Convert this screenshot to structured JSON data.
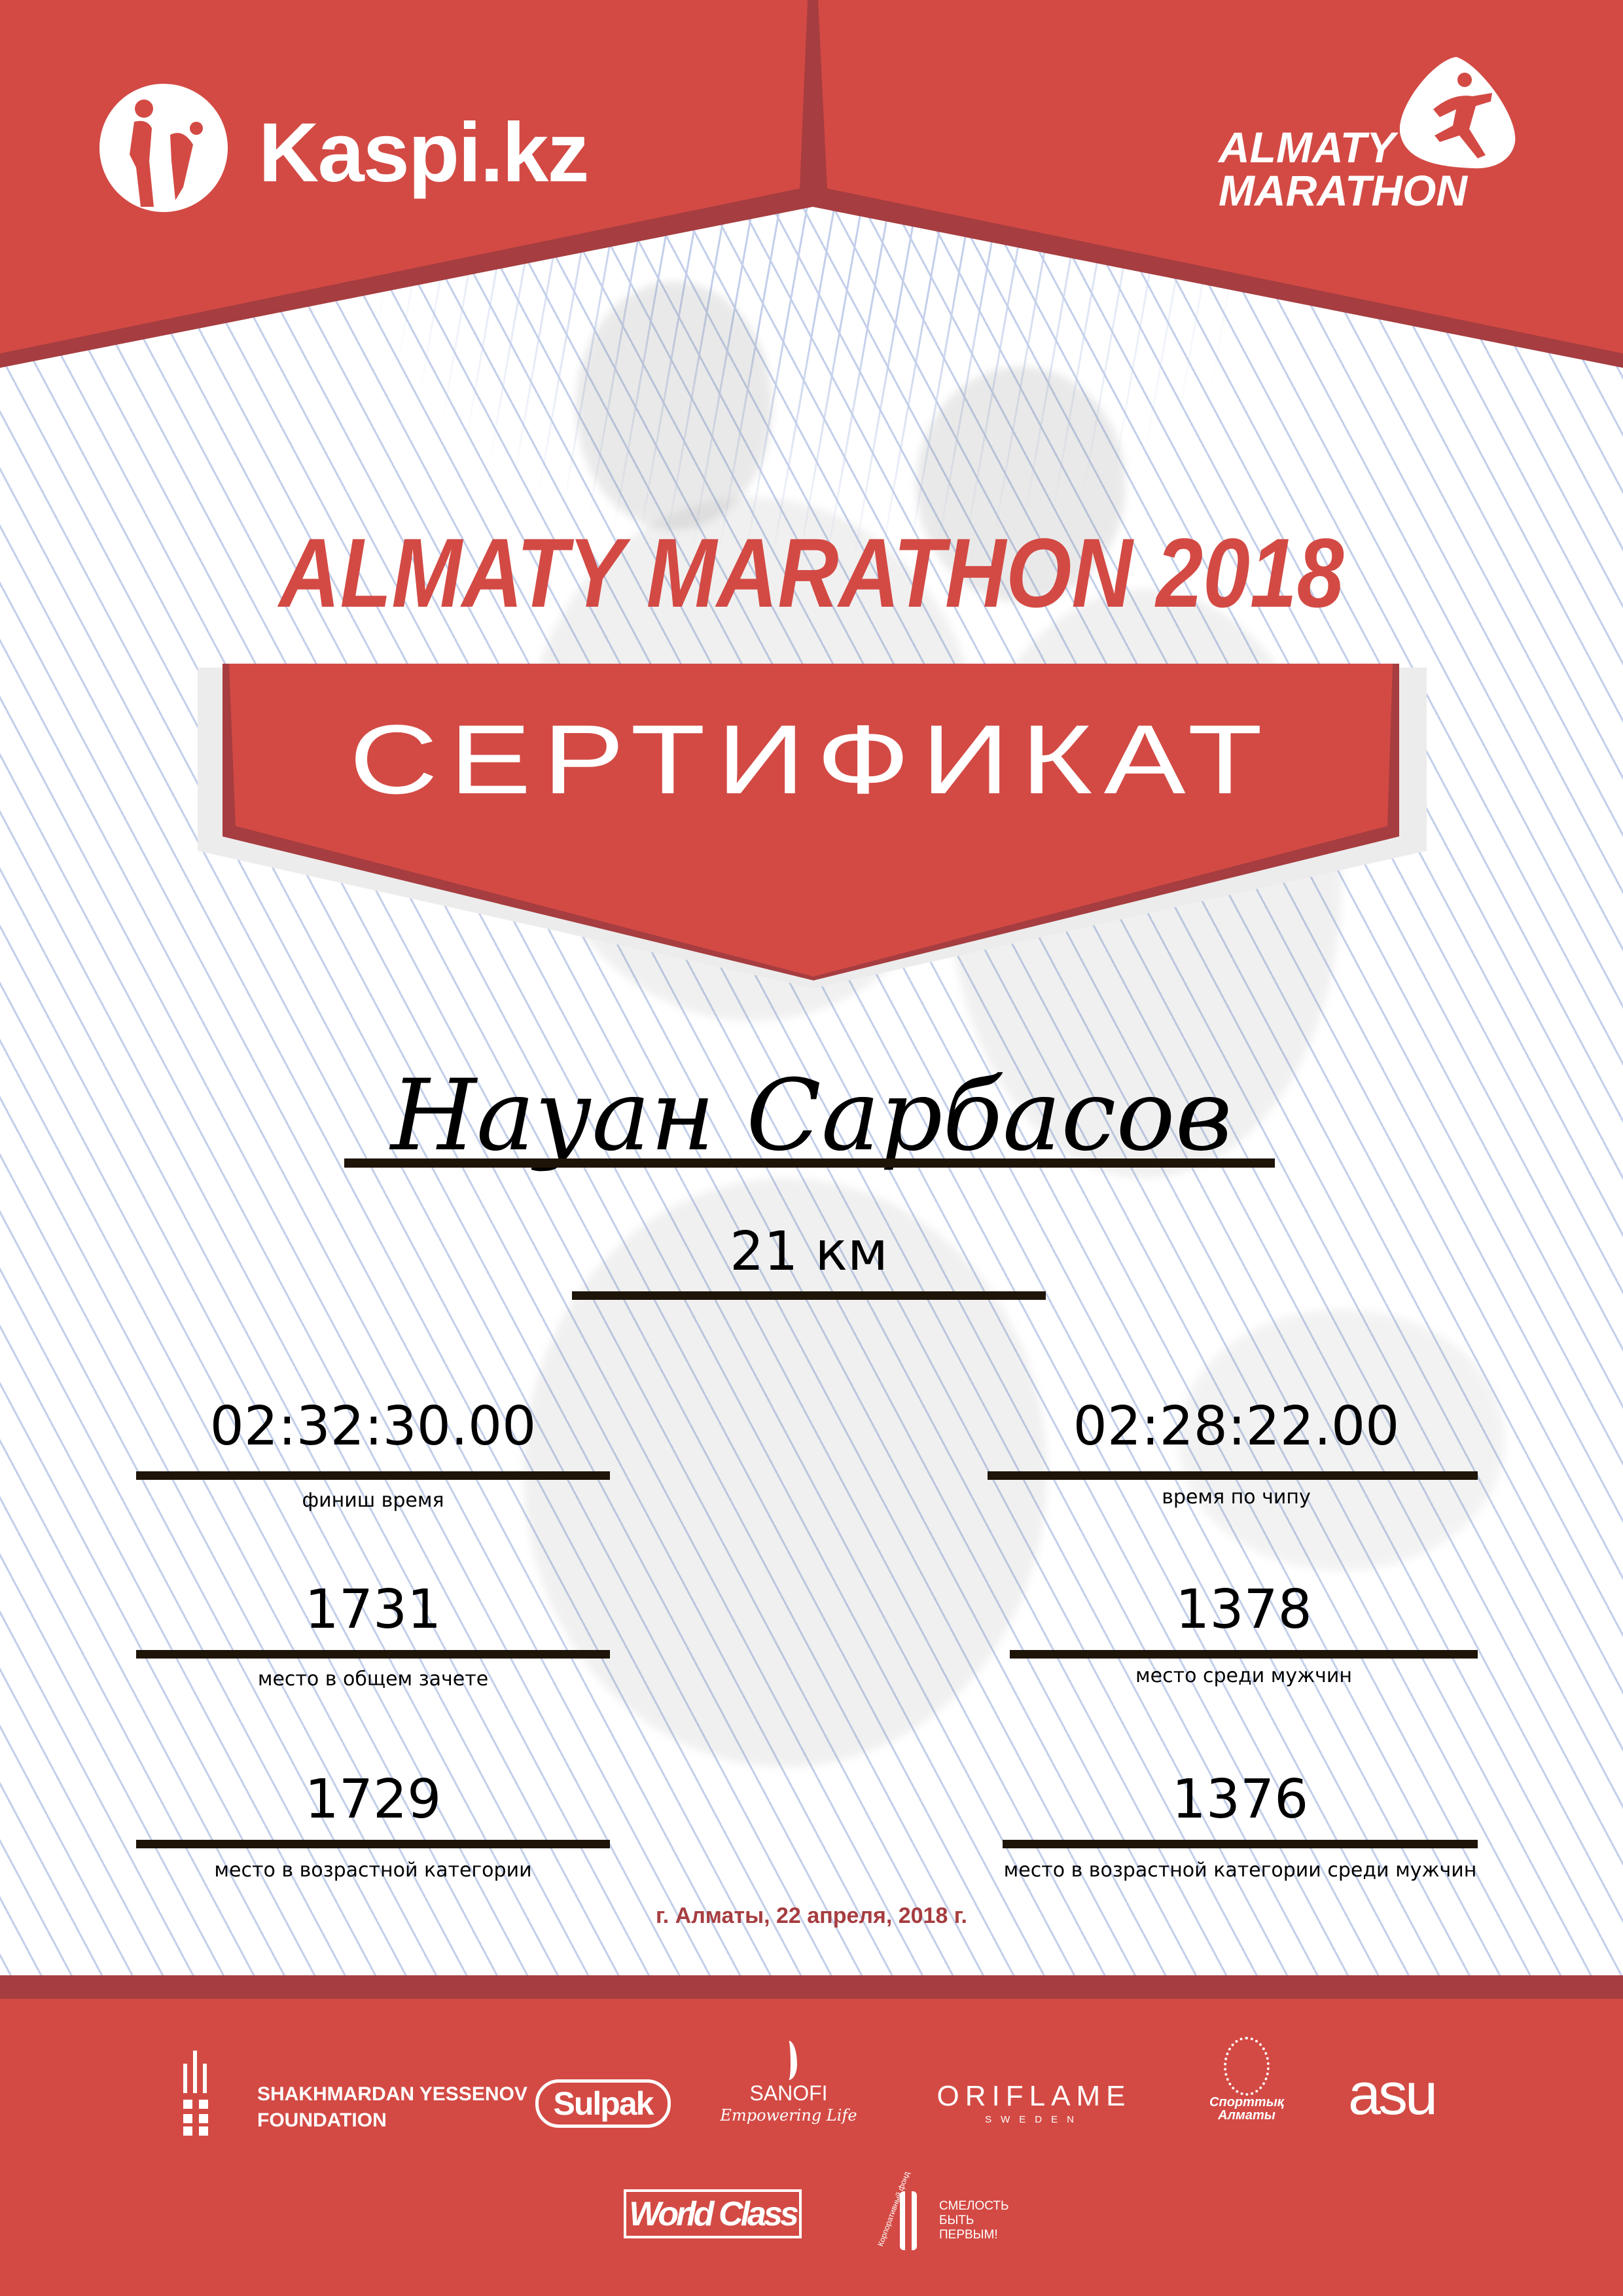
{
  "header": {
    "left_logo": {
      "text": "Kaspi.kz",
      "icon": "kaspi-figures-icon"
    },
    "right_logo": {
      "line1": "ALMATY",
      "line2": "MARATHON",
      "icon": "runner-icon"
    }
  },
  "title": "ALMATY MARATHON 2018",
  "banner": "СЕРТИФИКАТ",
  "participant": {
    "name": "Науан Сарбасов",
    "distance": "21 км"
  },
  "results": [
    {
      "value": "02:32:30.00",
      "label": "финиш время"
    },
    {
      "value": "02:28:22.00",
      "label": "время по чипу"
    },
    {
      "value": "1731",
      "label": "место в общем зачете"
    },
    {
      "value": "1378",
      "label": "место среди мужчин"
    },
    {
      "value": "1729",
      "label": "место в возрастной категории"
    },
    {
      "value": "1376",
      "label": "место в возрастной категории среди мужчин"
    }
  ],
  "date": "г. Алматы, 22 апреля, 2018 г.",
  "sponsors": {
    "yessenov": {
      "line1": "SHAKHMARDAN YESSENOV",
      "line2": "FOUNDATION"
    },
    "sulpak": "Sulpak",
    "sanofi": {
      "name": "SANOFI",
      "tagline": "Empowering Life"
    },
    "oriflame": {
      "name": "ORIFLAME",
      "sub": "SWEDEN"
    },
    "sport_almaty": {
      "line1": "Спорттық",
      "line2": "Алматы"
    },
    "asu": "asu",
    "worldclass": "World Class",
    "fund": {
      "arc": "Корпоративный фонд",
      "line1": "СМЕЛОСТЬ",
      "line2": "БЫТЬ",
      "line3": "ПЕРВЫМ!"
    }
  },
  "colors": {
    "red": "#d34a44",
    "dark_red": "#a63d40",
    "line": "#1e1408",
    "pattern": "#c3cfea"
  }
}
